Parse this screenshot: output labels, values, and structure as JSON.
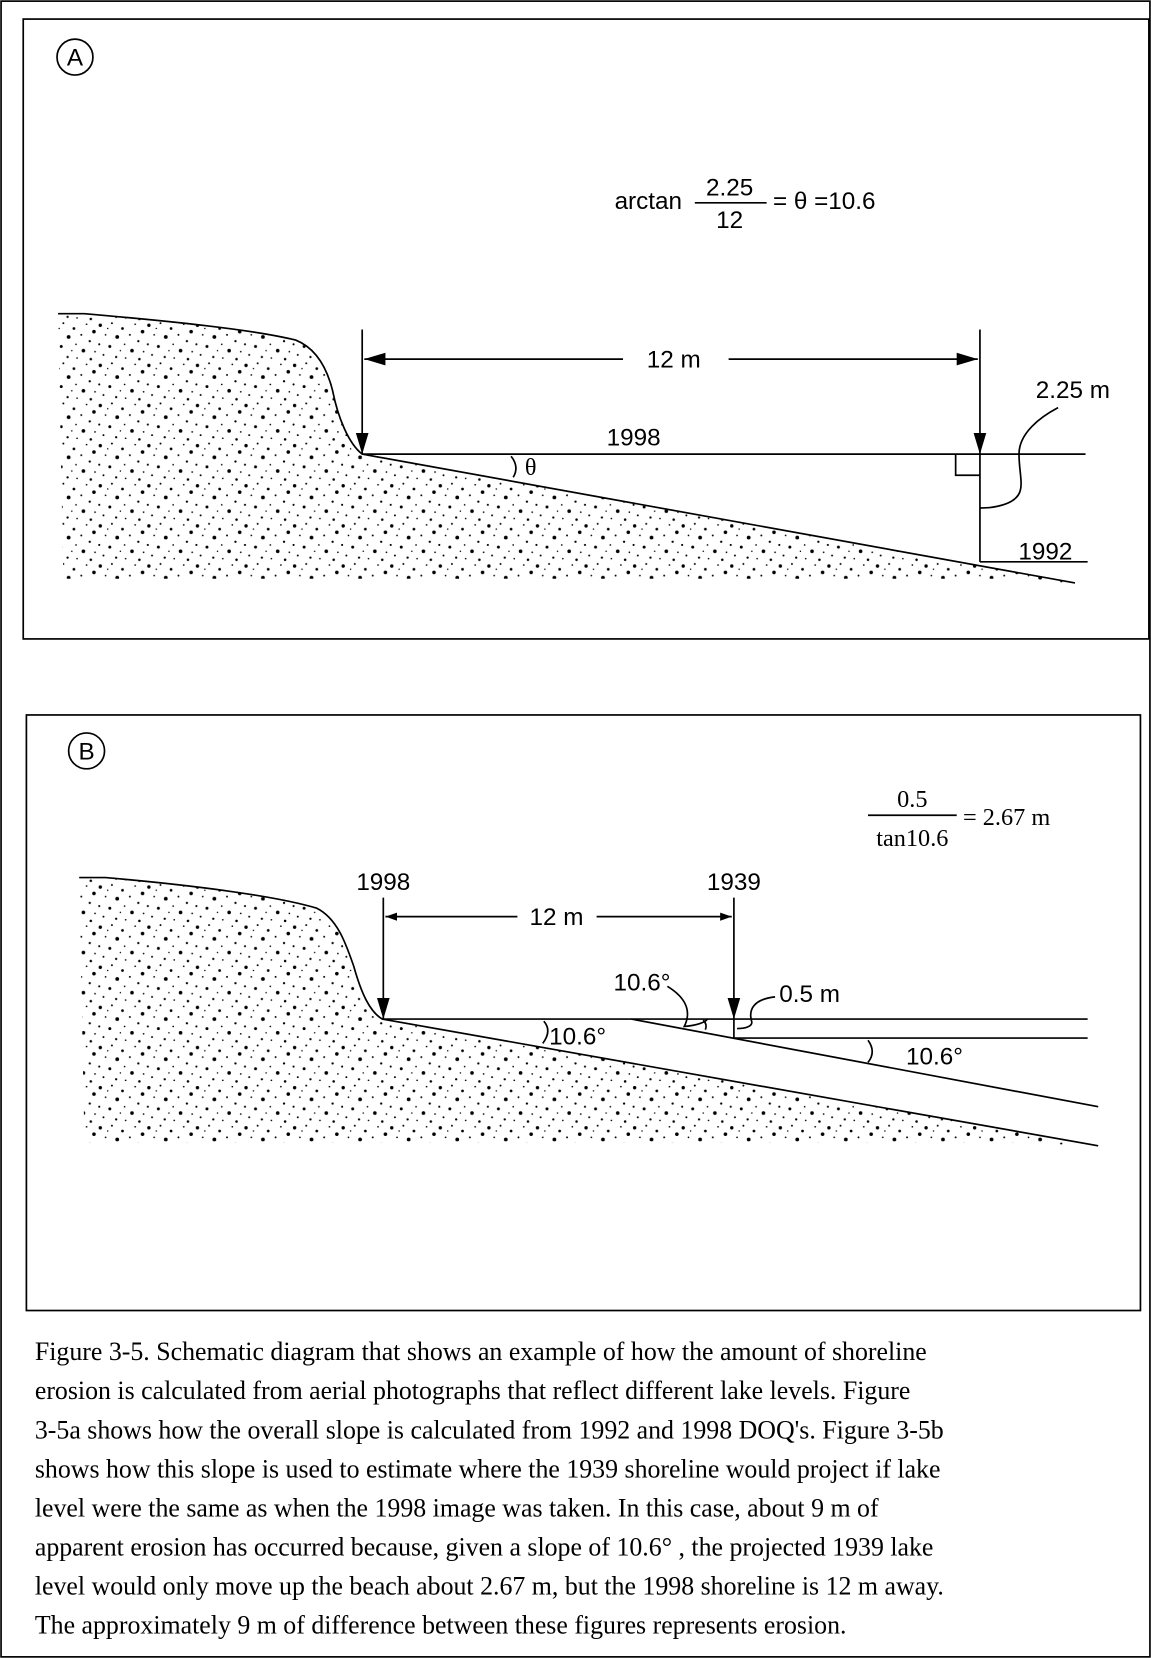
{
  "panel_a": {
    "label": "A",
    "formula": {
      "prefix": "arctan",
      "numerator": "2.25",
      "denominator": "12",
      "suffix": "= θ =10.6"
    },
    "distance": "12 m",
    "height": "2.25 m",
    "year_upper": "1998",
    "year_lower": "1992",
    "angle": "θ"
  },
  "panel_b": {
    "label": "B",
    "formula": {
      "numerator": "0.5",
      "denominator": "tan10.6",
      "suffix": "= 2.67 m"
    },
    "year_left": "1998",
    "year_right": "1939",
    "distance": "12 m",
    "offset": "0.5 m",
    "angles": [
      "10.6°",
      "10.6°",
      "10.6°"
    ]
  },
  "caption": {
    "lines": [
      "Figure 3-5. Schematic diagram that shows an example of how the amount of shoreline",
      "erosion is calculated from aerial photographs that reflect different lake levels. Figure",
      "3-5a shows how the overall slope is calculated from 1992 and 1998 DOQ's. Figure 3-5b",
      "shows how this slope is used to estimate where the 1939 shoreline would project if lake",
      "level were the same as when the 1998 image was taken. In this case, about 9 m of",
      "apparent erosion has occurred because, given a slope of 10.6° , the projected 1939 lake",
      "level would only move up the beach about 2.67 m, but the 1998 shoreline is 12 m away.",
      "The approximately 9 m of difference between these figures represents erosion."
    ]
  }
}
